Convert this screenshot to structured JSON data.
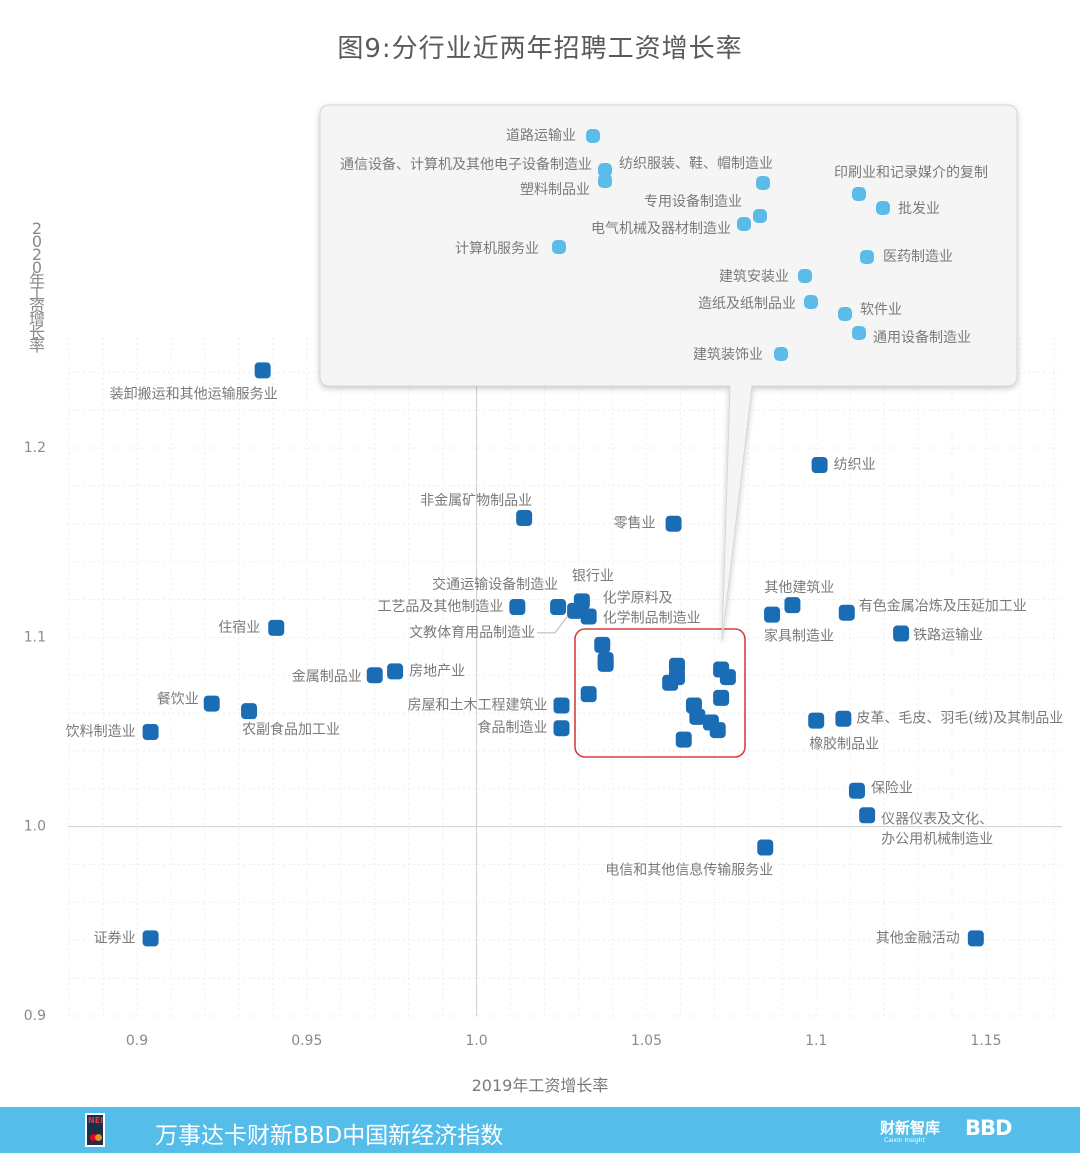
{
  "title": "图9:分行业近两年招聘工资增长率",
  "footer": {
    "text": "万事达卡财新BBD中国新经济指数",
    "brand_caixin": "财新智库",
    "brand_caixin_sub": "Caixin Insight",
    "brand_bbd": "BBD",
    "logo_text": "NEI"
  },
  "colors": {
    "main_point": "#1a6db4",
    "zoom_point": "#5bbcea",
    "highlight_box": "#d4403f"
  },
  "chart_data": {
    "type": "scatter",
    "title": "图9:分行业近两年招聘工资增长率",
    "xlabel": "2019年工资增长率",
    "ylabel": "2020年工资增长率",
    "xlim": [
      0.88,
      1.17
    ],
    "ylim": [
      0.9,
      1.26
    ],
    "xticks": [
      "0.9",
      "0.95",
      "1.0",
      "1.05",
      "1.1",
      "1.15"
    ],
    "yticks": [
      "0.9",
      "1.0",
      "1.1",
      "1.2"
    ],
    "grid": true,
    "points": [
      {
        "label": "装卸搬运和其他运输服务业",
        "x": 0.937,
        "y": 1.241
      },
      {
        "label": "纺织业",
        "x": 1.101,
        "y": 1.191
      },
      {
        "label": "非金属矿物制品业",
        "x": 1.014,
        "y": 1.163
      },
      {
        "label": "零售业",
        "x": 1.058,
        "y": 1.16
      },
      {
        "label": "其他建筑业",
        "x": 1.093,
        "y": 1.117
      },
      {
        "label": "家具制造业",
        "x": 1.087,
        "y": 1.112
      },
      {
        "label": "有色金属冶炼及压延加工业",
        "x": 1.109,
        "y": 1.113
      },
      {
        "label": "铁路运输业",
        "x": 1.125,
        "y": 1.102
      },
      {
        "label": "住宿业",
        "x": 0.941,
        "y": 1.105
      },
      {
        "label": "交通运输设备制造业",
        "x": 1.024,
        "y": 1.116
      },
      {
        "label": "工艺品及其他制造业",
        "x": 1.012,
        "y": 1.116
      },
      {
        "label": "银行业",
        "x": 1.031,
        "y": 1.119
      },
      {
        "label": "化学原料及化学制品制造业",
        "x": 1.033,
        "y": 1.111
      },
      {
        "label": "文教体育用品制造业",
        "x": 1.029,
        "y": 1.114
      },
      {
        "label": "房地产业",
        "x": 0.976,
        "y": 1.082
      },
      {
        "label": "金属制品业",
        "x": 0.97,
        "y": 1.08
      },
      {
        "label": "餐饮业",
        "x": 0.922,
        "y": 1.065
      },
      {
        "label": "农副食品加工业",
        "x": 0.933,
        "y": 1.061
      },
      {
        "label": "饮料制造业",
        "x": 0.904,
        "y": 1.05
      },
      {
        "label": "房屋和土木工程建筑业",
        "x": 1.025,
        "y": 1.064
      },
      {
        "label": "食品制造业",
        "x": 1.025,
        "y": 1.052
      },
      {
        "label": "皮革、毛皮、羽毛(绒)及其制品业",
        "x": 1.108,
        "y": 1.057
      },
      {
        "label": "橡胶制品业",
        "x": 1.1,
        "y": 1.056
      },
      {
        "label": "保险业",
        "x": 1.112,
        "y": 1.019
      },
      {
        "label": "仪器仪表及文化、办公用机械制造业",
        "x": 1.115,
        "y": 1.006
      },
      {
        "label": "电信和其他信息传输服务业",
        "x": 1.085,
        "y": 0.989
      },
      {
        "label": "证券业",
        "x": 0.904,
        "y": 0.941
      },
      {
        "label": "其他金融活动",
        "x": 1.147,
        "y": 0.941
      }
    ],
    "cluster_points": [
      {
        "x": 1.033,
        "y": 1.07
      },
      {
        "x": 1.037,
        "y": 1.096
      },
      {
        "x": 1.038,
        "y": 1.088
      },
      {
        "x": 1.038,
        "y": 1.086
      },
      {
        "x": 1.059,
        "y": 1.085
      },
      {
        "x": 1.059,
        "y": 1.079
      },
      {
        "x": 1.057,
        "y": 1.076
      },
      {
        "x": 1.072,
        "y": 1.083
      },
      {
        "x": 1.074,
        "y": 1.079
      },
      {
        "x": 1.072,
        "y": 1.068
      },
      {
        "x": 1.064,
        "y": 1.064
      },
      {
        "x": 1.065,
        "y": 1.058
      },
      {
        "x": 1.069,
        "y": 1.055
      },
      {
        "x": 1.071,
        "y": 1.051
      },
      {
        "x": 1.061,
        "y": 1.046
      }
    ],
    "zoom_points": [
      {
        "label": "道路运输业"
      },
      {
        "label": "通信设备、计算机及其他电子设备制造业"
      },
      {
        "label": "塑料制品业"
      },
      {
        "label": "纺织服装、鞋、帽制造业"
      },
      {
        "label": "印刷业和记录媒介的复制"
      },
      {
        "label": "批发业"
      },
      {
        "label": "专用设备制造业"
      },
      {
        "label": "电气机械及器材制造业"
      },
      {
        "label": "计算机服务业"
      },
      {
        "label": "医药制造业"
      },
      {
        "label": "建筑安装业"
      },
      {
        "label": "造纸及纸制品业"
      },
      {
        "label": "软件业"
      },
      {
        "label": "通用设备制造业"
      },
      {
        "label": "建筑装饰业"
      }
    ]
  }
}
